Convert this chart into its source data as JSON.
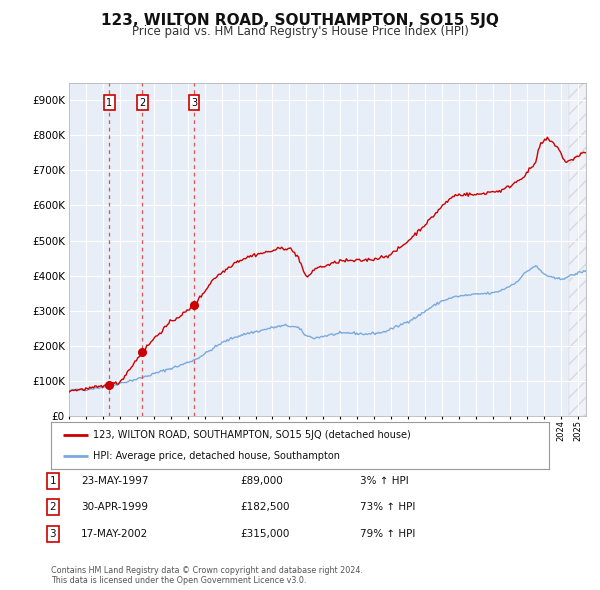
{
  "title": "123, WILTON ROAD, SOUTHAMPTON, SO15 5JQ",
  "subtitle": "Price paid vs. HM Land Registry's House Price Index (HPI)",
  "title_fontsize": 11,
  "subtitle_fontsize": 8.5,
  "plot_bg_color": "#e8eef7",
  "fig_bg_color": "#ffffff",
  "ylim": [
    0,
    950000
  ],
  "yticks": [
    0,
    100000,
    200000,
    300000,
    400000,
    500000,
    600000,
    700000,
    800000,
    900000
  ],
  "ytick_labels": [
    "£0",
    "£100K",
    "£200K",
    "£300K",
    "£400K",
    "£500K",
    "£600K",
    "£700K",
    "£800K",
    "£900K"
  ],
  "xlim_start": 1995.0,
  "xlim_end": 2025.5,
  "hatch_start": 2024.5,
  "sale_dates": [
    1997.388,
    1999.329,
    2002.376
  ],
  "sale_prices": [
    89000,
    182500,
    315000
  ],
  "sale_labels": [
    "1",
    "2",
    "3"
  ],
  "red_line_color": "#cc0000",
  "blue_line_color": "#7aaadd",
  "sale_dot_color": "#cc0000",
  "dashed_line_color": "#dd4444",
  "legend_label_red": "123, WILTON ROAD, SOUTHAMPTON, SO15 5JQ (detached house)",
  "legend_label_blue": "HPI: Average price, detached house, Southampton",
  "table_entries": [
    {
      "num": "1",
      "date": "23-MAY-1997",
      "price": "£89,000",
      "hpi": "3% ↑ HPI"
    },
    {
      "num": "2",
      "date": "30-APR-1999",
      "price": "£182,500",
      "hpi": "73% ↑ HPI"
    },
    {
      "num": "3",
      "date": "17-MAY-2002",
      "price": "£315,000",
      "hpi": "79% ↑ HPI"
    }
  ],
  "footer": "Contains HM Land Registry data © Crown copyright and database right 2024.\nThis data is licensed under the Open Government Licence v3.0.",
  "grid_color": "#ffffff"
}
